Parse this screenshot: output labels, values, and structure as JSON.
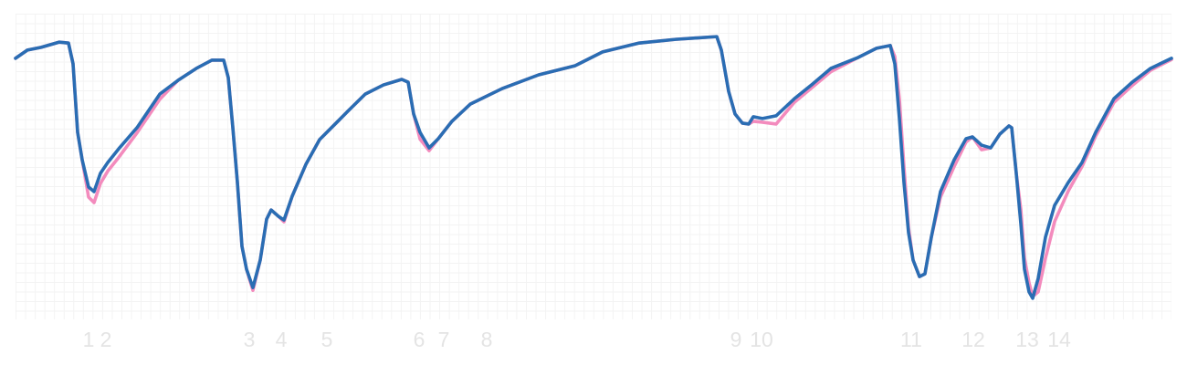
{
  "chart_data": {
    "type": "line",
    "x": [
      0,
      13,
      28,
      48,
      58,
      63,
      68,
      73,
      80,
      86,
      93,
      101,
      113,
      133,
      158,
      178,
      198,
      215,
      228,
      233,
      238,
      243,
      248,
      253,
      260,
      268,
      275,
      280,
      288,
      294,
      303,
      318,
      333,
      353,
      368,
      383,
      403,
      423,
      430,
      436,
      443,
      453,
      463,
      478,
      498,
      533,
      573,
      613,
      643,
      683,
      723,
      768,
      773,
      781,
      788,
      796,
      803,
      808,
      818,
      833,
      853,
      873,
      893,
      923,
      943,
      958,
      963,
      968,
      973,
      978,
      983,
      990,
      996,
      1003,
      1013,
      1028,
      1041,
      1048,
      1058,
      1068,
      1078,
      1088,
      1091,
      1096,
      1101,
      1105,
      1110,
      1114,
      1120,
      1128,
      1138,
      1153,
      1168,
      1183,
      1203,
      1223,
      1243,
      1266
    ],
    "series": [
      {
        "color": "#f38bbd",
        "values": [
          85.4,
          88.1,
          89.0,
          90.7,
          90.4,
          83.6,
          61.2,
          52.2,
          40.0,
          38.2,
          44.5,
          48.5,
          53.0,
          61.0,
          72.0,
          78.2,
          82.1,
          84.8,
          84.8,
          79.1,
          62.7,
          44.8,
          23.9,
          16.4,
          9.5,
          19.4,
          32.8,
          35.8,
          33.7,
          31.9,
          40.3,
          50.7,
          58.8,
          64.8,
          69.3,
          73.7,
          76.7,
          78.5,
          77.6,
          67.2,
          59.0,
          55.2,
          59.1,
          64.8,
          70.4,
          75.5,
          80.0,
          83.0,
          87.5,
          90.4,
          91.6,
          92.5,
          88.1,
          74.6,
          67.2,
          64.2,
          63.9,
          64.8,
          64.5,
          63.9,
          71.0,
          76.0,
          81.0,
          85.7,
          88.7,
          89.6,
          86.0,
          72.0,
          50.0,
          30.0,
          19.4,
          14.0,
          14.9,
          26.9,
          40.0,
          50.0,
          58.0,
          59.7,
          55.5,
          56.1,
          60.6,
          63.3,
          62.7,
          47.8,
          36.0,
          20.0,
          12.0,
          7.5,
          9.0,
          20.0,
          32.0,
          42.0,
          50.0,
          60.0,
          71.0,
          76.5,
          81.5,
          85.0
        ]
      },
      {
        "color": "#2a6db3",
        "values": [
          85.4,
          88.1,
          89.0,
          90.7,
          90.4,
          83.6,
          61.2,
          52.2,
          43.3,
          41.8,
          47.8,
          51.3,
          55.8,
          62.7,
          73.7,
          78.2,
          82.1,
          84.8,
          84.8,
          79.1,
          62.7,
          44.8,
          23.9,
          16.4,
          10.4,
          19.4,
          32.8,
          35.8,
          33.7,
          32.5,
          40.3,
          50.7,
          58.8,
          64.8,
          69.3,
          73.7,
          76.7,
          78.5,
          77.6,
          67.2,
          61.2,
          56.1,
          59.1,
          64.8,
          70.4,
          75.5,
          80.0,
          83.0,
          87.5,
          90.4,
          91.6,
          92.5,
          88.1,
          74.6,
          67.2,
          64.2,
          63.9,
          66.3,
          65.7,
          66.6,
          72.2,
          77.0,
          82.1,
          85.7,
          88.7,
          89.6,
          83.6,
          65.7,
          44.8,
          28.4,
          19.4,
          14.0,
          14.9,
          26.9,
          41.8,
          52.2,
          59.1,
          59.7,
          57.0,
          56.1,
          60.6,
          63.3,
          62.7,
          47.8,
          31.3,
          16.4,
          9.0,
          6.9,
          13.4,
          26.9,
          37.3,
          44.8,
          51.3,
          61.2,
          72.2,
          77.6,
          82.1,
          85.4
        ]
      }
    ],
    "xlim": [
      0,
      1266
    ],
    "ylim": [
      0,
      100
    ],
    "xticks": [
      {
        "value": 80,
        "label": "1"
      },
      {
        "value": 99,
        "label": "2"
      },
      {
        "value": 256,
        "label": "3"
      },
      {
        "value": 291,
        "label": "4"
      },
      {
        "value": 341,
        "label": "5"
      },
      {
        "value": 442,
        "label": "6"
      },
      {
        "value": 469,
        "label": "7"
      },
      {
        "value": 516,
        "label": "8"
      },
      {
        "value": 789,
        "label": "9"
      },
      {
        "value": 817,
        "label": "10"
      },
      {
        "value": 981,
        "label": "11"
      },
      {
        "value": 1049,
        "label": "12"
      },
      {
        "value": 1108,
        "label": "13"
      },
      {
        "value": 1143,
        "label": "14"
      }
    ],
    "grid": true
  }
}
